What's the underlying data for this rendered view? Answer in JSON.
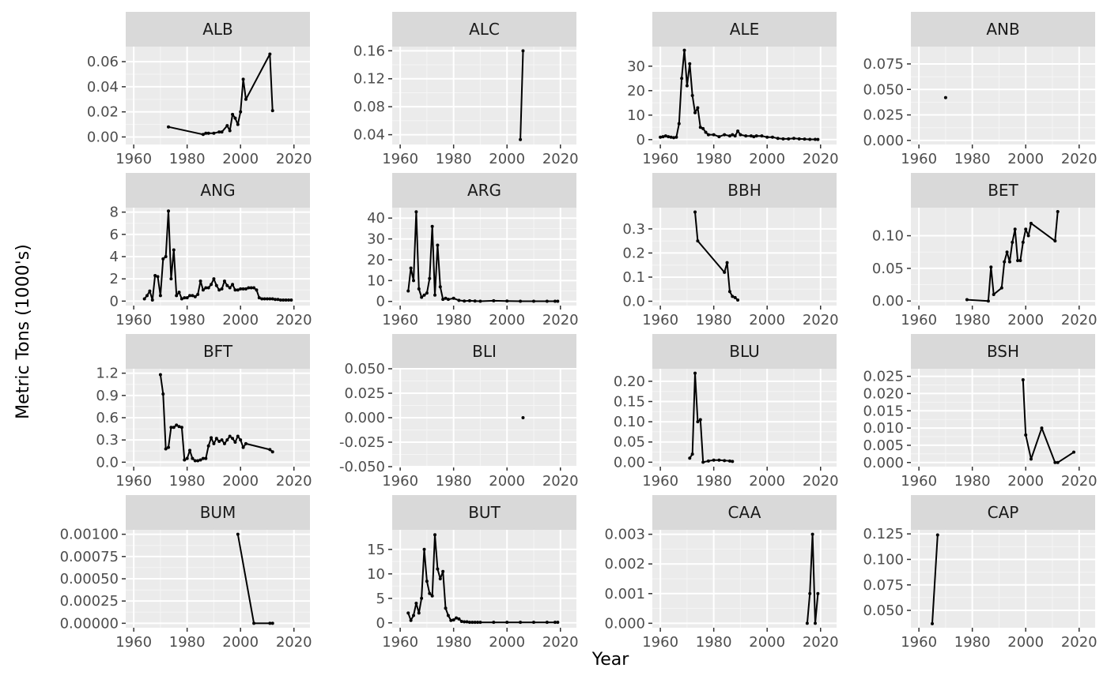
{
  "chart_data": {
    "type": "line",
    "layout": "facet_wrap",
    "xlabel": "Year",
    "ylabel": "Metric Tons (1000's)",
    "grid": true,
    "legend": "none",
    "colors": {
      "panel": "#ebebeb",
      "strip": "#d9d9d9",
      "grid_major": "#ffffff",
      "grid_minor": "#f5f5f5",
      "line": "#000000"
    },
    "x_ticks": [
      1960,
      1980,
      2000,
      2020
    ],
    "xlim": [
      1957,
      2026
    ],
    "panels": [
      {
        "label": "ALB",
        "ylim": [
          -0.006,
          0.072
        ],
        "y_ticks": [
          0,
          0.02,
          0.04,
          0.06
        ],
        "y_tick_labels": [
          "0.00",
          "0.02",
          "0.04",
          "0.06"
        ],
        "x": [
          1973,
          1986,
          1987,
          1988,
          1990,
          1992,
          1993,
          1995,
          1996,
          1997,
          1998,
          1999,
          2000,
          2001,
          2002,
          2011,
          2012
        ],
        "y": [
          0.008,
          0.002,
          0.003,
          0.003,
          0.003,
          0.004,
          0.004,
          0.009,
          0.005,
          0.018,
          0.015,
          0.01,
          0.02,
          0.046,
          0.03,
          0.066,
          0.021
        ]
      },
      {
        "label": "ALC",
        "ylim": [
          0.026,
          0.166
        ],
        "y_ticks": [
          0.04,
          0.08,
          0.12,
          0.16
        ],
        "y_tick_labels": [
          "0.04",
          "0.08",
          "0.12",
          "0.16"
        ],
        "x": [
          2005,
          2006
        ],
        "y": [
          0.033,
          0.16
        ]
      },
      {
        "label": "ALE",
        "ylim": [
          -2,
          38
        ],
        "y_ticks": [
          0,
          10,
          20,
          30
        ],
        "y_tick_labels": [
          "0",
          "10",
          "20",
          "30"
        ],
        "x": [
          1960,
          1961,
          1962,
          1963,
          1964,
          1965,
          1966,
          1967,
          1968,
          1969,
          1970,
          1971,
          1972,
          1973,
          1974,
          1975,
          1976,
          1977,
          1978,
          1980,
          1982,
          1984,
          1986,
          1987,
          1988,
          1989,
          1990,
          1992,
          1994,
          1995,
          1996,
          1998,
          2000,
          2002,
          2004,
          2006,
          2008,
          2010,
          2012,
          2014,
          2016,
          2018,
          2019
        ],
        "y": [
          1,
          1.2,
          1.5,
          1.2,
          1,
          0.8,
          1,
          6.5,
          25,
          36.5,
          22,
          31,
          18,
          11,
          13,
          5,
          4.5,
          3,
          2,
          2,
          1.2,
          2,
          1.5,
          2,
          1.5,
          3.5,
          2,
          1.5,
          1.5,
          1.2,
          1.5,
          1.5,
          1,
          1,
          0.5,
          0.3,
          0.3,
          0.5,
          0.3,
          0.2,
          0.1,
          0.1,
          0.05
        ]
      },
      {
        "label": "ANB",
        "ylim": [
          -0.004,
          0.092
        ],
        "y_ticks": [
          0,
          0.025,
          0.05,
          0.075
        ],
        "y_tick_labels": [
          "0.000",
          "0.025",
          "0.050",
          "0.075"
        ],
        "x": [
          1970
        ],
        "y": [
          0.042
        ]
      },
      {
        "label": "ANG",
        "ylim": [
          -0.4,
          8.4
        ],
        "y_ticks": [
          0,
          2,
          4,
          6,
          8
        ],
        "y_tick_labels": [
          "0",
          "2",
          "4",
          "6",
          "8"
        ],
        "x": [
          1964,
          1965,
          1966,
          1967,
          1968,
          1969,
          1970,
          1971,
          1972,
          1973,
          1974,
          1975,
          1976,
          1977,
          1978,
          1979,
          1980,
          1981,
          1982,
          1983,
          1984,
          1985,
          1986,
          1987,
          1988,
          1989,
          1990,
          1991,
          1992,
          1993,
          1994,
          1995,
          1996,
          1997,
          1998,
          1999,
          2000,
          2001,
          2002,
          2003,
          2004,
          2005,
          2006,
          2007,
          2008,
          2009,
          2010,
          2011,
          2012,
          2013,
          2014,
          2015,
          2016,
          2017,
          2018,
          2019
        ],
        "y": [
          0.2,
          0.5,
          0.9,
          0.1,
          2.3,
          2.2,
          0.5,
          3.8,
          4,
          8.1,
          2,
          4.6,
          0.5,
          0.8,
          0.2,
          0.3,
          0.3,
          0.5,
          0.5,
          0.4,
          0.6,
          1.8,
          1,
          1.2,
          1.2,
          1.5,
          2,
          1.4,
          1,
          1.1,
          1.8,
          1.4,
          1.2,
          1.5,
          1,
          1,
          1.1,
          1.1,
          1.1,
          1.2,
          1.2,
          1.2,
          1,
          0.3,
          0.2,
          0.2,
          0.2,
          0.2,
          0.2,
          0.15,
          0.15,
          0.1,
          0.1,
          0.1,
          0.1,
          0.1
        ]
      },
      {
        "label": "ARG",
        "ylim": [
          -2,
          45
        ],
        "y_ticks": [
          0,
          10,
          20,
          30,
          40
        ],
        "y_tick_labels": [
          "0",
          "10",
          "20",
          "30",
          "40"
        ],
        "x": [
          1963,
          1964,
          1965,
          1966,
          1967,
          1968,
          1969,
          1970,
          1971,
          1972,
          1973,
          1974,
          1975,
          1976,
          1977,
          1978,
          1980,
          1982,
          1984,
          1986,
          1988,
          1990,
          1995,
          2000,
          2005,
          2010,
          2015,
          2018,
          2019
        ],
        "y": [
          5,
          16,
          10,
          43,
          6,
          2,
          3,
          4,
          11,
          36,
          3,
          27,
          7,
          1,
          1.5,
          1,
          1.5,
          0.5,
          0.2,
          0.3,
          0.2,
          0.1,
          0.3,
          0.2,
          0.1,
          0.1,
          0.1,
          0.1,
          0.1
        ]
      },
      {
        "label": "BBH",
        "ylim": [
          -0.018,
          0.388
        ],
        "y_ticks": [
          0,
          0.1,
          0.2,
          0.3
        ],
        "y_tick_labels": [
          "0.0",
          "0.1",
          "0.2",
          "0.3"
        ],
        "x": [
          1973,
          1974,
          1984,
          1985,
          1986,
          1987,
          1988,
          1989
        ],
        "y": [
          0.37,
          0.25,
          0.12,
          0.16,
          0.04,
          0.02,
          0.015,
          0.005
        ]
      },
      {
        "label": "BET",
        "ylim": [
          -0.007,
          0.143
        ],
        "y_ticks": [
          0,
          0.05,
          0.1
        ],
        "y_tick_labels": [
          "0.00",
          "0.05",
          "0.10"
        ],
        "x": [
          1978,
          1986,
          1987,
          1988,
          1991,
          1992,
          1993,
          1994,
          1995,
          1996,
          1997,
          1998,
          1999,
          2000,
          2001,
          2002,
          2011,
          2012
        ],
        "y": [
          0.002,
          0,
          0.052,
          0.01,
          0.02,
          0.06,
          0.075,
          0.06,
          0.09,
          0.11,
          0.062,
          0.062,
          0.09,
          0.11,
          0.1,
          0.119,
          0.092,
          0.137
        ]
      },
      {
        "label": "BFT",
        "ylim": [
          -0.06,
          1.26
        ],
        "y_ticks": [
          0,
          0.3,
          0.6,
          0.9,
          1.2
        ],
        "y_tick_labels": [
          "0.0",
          "0.3",
          "0.6",
          "0.9",
          "1.2"
        ],
        "x": [
          1970,
          1971,
          1972,
          1973,
          1974,
          1975,
          1976,
          1977,
          1978,
          1979,
          1980,
          1981,
          1982,
          1983,
          1984,
          1985,
          1986,
          1987,
          1988,
          1989,
          1990,
          1991,
          1992,
          1993,
          1994,
          1995,
          1996,
          1997,
          1998,
          1999,
          2000,
          2001,
          2002,
          2011,
          2012
        ],
        "y": [
          1.18,
          0.92,
          0.18,
          0.2,
          0.47,
          0.47,
          0.5,
          0.48,
          0.47,
          0.03,
          0.05,
          0.16,
          0.05,
          0.02,
          0.02,
          0.03,
          0.05,
          0.05,
          0.22,
          0.33,
          0.25,
          0.32,
          0.28,
          0.3,
          0.25,
          0.3,
          0.35,
          0.32,
          0.27,
          0.35,
          0.3,
          0.2,
          0.25,
          0.17,
          0.14
        ]
      },
      {
        "label": "BLI",
        "ylim": [
          -0.05,
          0.05
        ],
        "y_ticks": [
          -0.05,
          -0.025,
          0,
          0.025,
          0.05
        ],
        "y_tick_labels": [
          "-0.050",
          "-0.025",
          "0.000",
          "0.025",
          "0.050"
        ],
        "x": [
          2006
        ],
        "y": [
          0
        ]
      },
      {
        "label": "BLU",
        "ylim": [
          -0.011,
          0.231
        ],
        "y_ticks": [
          0,
          0.05,
          0.1,
          0.15,
          0.2
        ],
        "y_tick_labels": [
          "0.00",
          "0.05",
          "0.10",
          "0.15",
          "0.20"
        ],
        "x": [
          1971,
          1972,
          1973,
          1974,
          1975,
          1976,
          1978,
          1980,
          1982,
          1984,
          1986,
          1987
        ],
        "y": [
          0.01,
          0.02,
          0.22,
          0.1,
          0.105,
          0,
          0.003,
          0.005,
          0.005,
          0.004,
          0.003,
          0.002
        ]
      },
      {
        "label": "BSH",
        "ylim": [
          -0.0012,
          0.0272
        ],
        "y_ticks": [
          0,
          0.005,
          0.01,
          0.015,
          0.02,
          0.025
        ],
        "y_tick_labels": [
          "0.000",
          "0.005",
          "0.010",
          "0.015",
          "0.020",
          "0.025"
        ],
        "x": [
          1999,
          2000,
          2002,
          2006,
          2011,
          2012,
          2018
        ],
        "y": [
          0.024,
          0.008,
          0.001,
          0.01,
          0,
          0,
          0.003
        ]
      },
      {
        "label": "BUM",
        "ylim": [
          -5e-05,
          0.00105
        ],
        "y_ticks": [
          0,
          0.00025,
          0.0005,
          0.00075,
          0.001
        ],
        "y_tick_labels": [
          "0.00000",
          "0.00025",
          "0.00050",
          "0.00075",
          "0.00100"
        ],
        "x": [
          1999,
          2005,
          2011,
          2012
        ],
        "y": [
          0.001,
          0,
          0,
          0
        ]
      },
      {
        "label": "BUT",
        "ylim": [
          -1,
          19
        ],
        "y_ticks": [
          0,
          5,
          10,
          15
        ],
        "y_tick_labels": [
          "0",
          "5",
          "10",
          "15"
        ],
        "x": [
          1963,
          1964,
          1965,
          1966,
          1967,
          1968,
          1969,
          1970,
          1971,
          1972,
          1973,
          1974,
          1975,
          1976,
          1977,
          1978,
          1979,
          1980,
          1981,
          1982,
          1983,
          1984,
          1985,
          1986,
          1987,
          1988,
          1989,
          1990,
          1995,
          2000,
          2005,
          2010,
          2015,
          2018,
          2019
        ],
        "y": [
          2,
          0.5,
          1.5,
          4,
          2,
          5,
          15,
          8.5,
          6,
          5.5,
          18,
          11,
          9,
          10.5,
          3,
          1.5,
          0.5,
          0.6,
          1,
          0.8,
          0.3,
          0.2,
          0.2,
          0.1,
          0.1,
          0.1,
          0.1,
          0.1,
          0.1,
          0.1,
          0.1,
          0.1,
          0.1,
          0.1,
          0.1
        ]
      },
      {
        "label": "CAA",
        "ylim": [
          -0.00015,
          0.00315
        ],
        "y_ticks": [
          0,
          0.001,
          0.002,
          0.003
        ],
        "y_tick_labels": [
          "0.000",
          "0.001",
          "0.002",
          "0.003"
        ],
        "x": [
          2015,
          2016,
          2017,
          2018,
          2019
        ],
        "y": [
          0,
          0.001,
          0.003,
          0,
          0.001
        ]
      },
      {
        "label": "CAP",
        "ylim": [
          0.033,
          0.129
        ],
        "y_ticks": [
          0.05,
          0.075,
          0.1,
          0.125
        ],
        "y_tick_labels": [
          "0.050",
          "0.075",
          "0.100",
          "0.125"
        ],
        "x": [
          1965,
          1967
        ],
        "y": [
          0.037,
          0.124
        ]
      }
    ]
  }
}
